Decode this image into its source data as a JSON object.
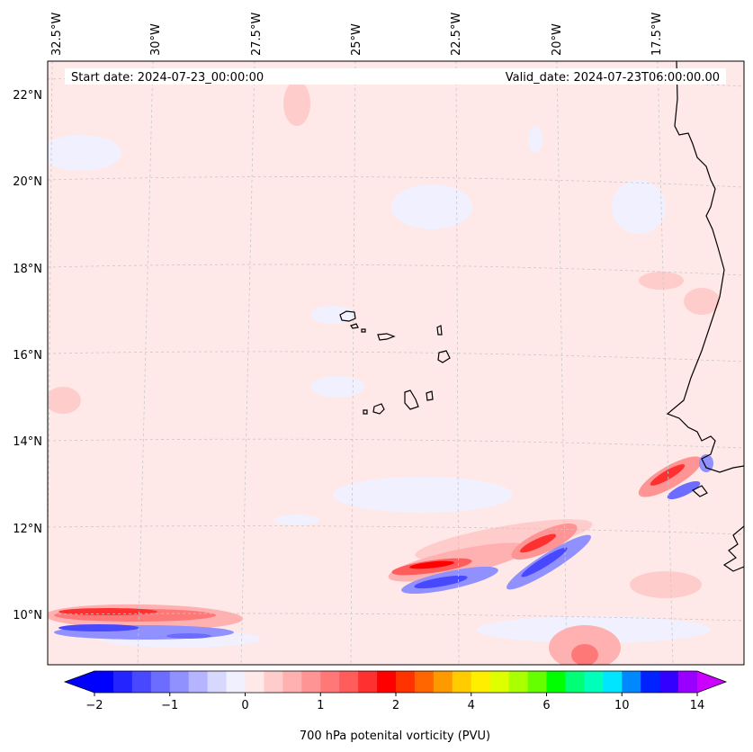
{
  "header": {
    "start_date": "Start date: 2024-07-23_00:00:00",
    "valid_date": "Valid_date: 2024-07-23T06:00:00.00"
  },
  "map": {
    "lon_labels": [
      "32.5°W",
      "30°W",
      "27.5°W",
      "25°W",
      "22.5°W",
      "20°W",
      "17.5°W"
    ],
    "lat_labels": [
      "22°N",
      "20°N",
      "18°N",
      "16°N",
      "14°N",
      "12°N",
      "10°N"
    ],
    "field": "700 hPa potential vorticity",
    "background_color": "#ffe8e8"
  },
  "colorbar": {
    "label": "700 hPa potenital vorticity (PVU)",
    "ticks": [
      "−2",
      "−1",
      "0",
      "1",
      "2",
      "4",
      "6",
      "10",
      "14"
    ],
    "colors": [
      "#0000ff",
      "#2424ff",
      "#4848ff",
      "#6c6cff",
      "#9090ff",
      "#b4b4ff",
      "#d8d8ff",
      "#f0f0ff",
      "#ffe8e8",
      "#ffcccc",
      "#ffb0b0",
      "#ff9494",
      "#ff7878",
      "#ff5c5c",
      "#ff3030",
      "#ff0000",
      "#ff3300",
      "#ff6600",
      "#ff9900",
      "#ffcc00",
      "#ffee00",
      "#ddff00",
      "#aaff00",
      "#66ff00",
      "#00ff00",
      "#00ff77",
      "#00ffbb",
      "#00e5ff",
      "#0088ff",
      "#0022ff",
      "#3300ff",
      "#9900ff"
    ],
    "under_color": "#0000ff",
    "over_color": "#cc00ff"
  }
}
